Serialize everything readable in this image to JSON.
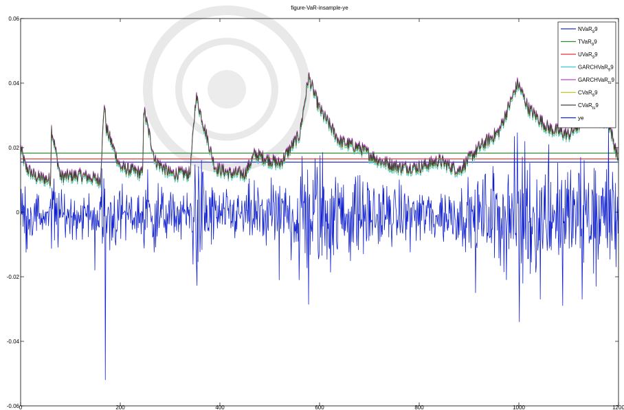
{
  "chart_data": {
    "type": "line",
    "title": "figure-VaR-insample-ye",
    "xlim": [
      0,
      1200
    ],
    "ylim": [
      -0.06,
      0.06
    ],
    "xticks": [
      0,
      200,
      400,
      600,
      800,
      1000,
      1200
    ],
    "yticks": [
      -0.06,
      -0.04,
      -0.02,
      0,
      0.02,
      0.04,
      0.06
    ],
    "xtick_labels": [
      "0",
      "200",
      "400",
      "600",
      "800",
      "1000",
      "1200"
    ],
    "ytick_labels": [
      "-0.06",
      "-0.04",
      "-0.02",
      "0",
      "0.02",
      "0.04",
      "0.06"
    ],
    "grid": false,
    "legend_position": "top-right",
    "series": [
      {
        "name": "NVaR",
        "sub": "9",
        "tail": "9",
        "color": "#1f2fcf",
        "kind": "constant",
        "value": 0.0155
      },
      {
        "name": "TVaR",
        "sub": "9",
        "tail": "9",
        "color": "#2e8b2e",
        "kind": "constant",
        "value": 0.0183
      },
      {
        "name": "UVaR",
        "sub": "9",
        "tail": "9",
        "color": "#e03030",
        "kind": "constant",
        "value": 0.0165
      },
      {
        "name": "GARCHVaR",
        "sub": "9",
        "tail": "9",
        "color": "#30c8d8",
        "kind": "garch"
      },
      {
        "name": "GARCHVaR",
        "sub": "ts",
        "tail": "9",
        "color": "#c040c8",
        "kind": "garch"
      },
      {
        "name": "CVaR",
        "sub": "9",
        "tail": "9",
        "color": "#c8c020",
        "kind": "garch"
      },
      {
        "name": "CVaR",
        "sub": "ts",
        "tail": "9",
        "color": "#404040",
        "kind": "garch"
      },
      {
        "name": "ye",
        "sub": "",
        "tail": "",
        "color": "#1020d0",
        "kind": "returns"
      }
    ],
    "garch_profile": {
      "x": [
        0,
        10,
        30,
        60,
        62,
        80,
        120,
        160,
        168,
        172,
        200,
        245,
        247,
        270,
        300,
        340,
        352,
        390,
        420,
        450,
        470,
        520,
        560,
        578,
        600,
        640,
        680,
        720,
        760,
        800,
        840,
        880,
        920,
        960,
        998,
        1020,
        1060,
        1100,
        1140,
        1180,
        1200
      ],
      "y": [
        0.02,
        0.014,
        0.011,
        0.01,
        0.026,
        0.011,
        0.0115,
        0.01,
        0.034,
        0.026,
        0.014,
        0.012,
        0.032,
        0.016,
        0.012,
        0.012,
        0.036,
        0.014,
        0.012,
        0.012,
        0.018,
        0.015,
        0.024,
        0.042,
        0.032,
        0.022,
        0.02,
        0.016,
        0.014,
        0.014,
        0.016,
        0.013,
        0.02,
        0.025,
        0.04,
        0.032,
        0.026,
        0.024,
        0.03,
        0.028,
        0.016
      ]
    },
    "returns_spikes": [
      {
        "x": 170,
        "y": -0.052
      },
      {
        "x": 149,
        "y": -0.018
      },
      {
        "x": 559,
        "y": -0.021
      },
      {
        "x": 519,
        "y": -0.021
      },
      {
        "x": 913,
        "y": -0.025
      },
      {
        "x": 1001,
        "y": -0.034
      },
      {
        "x": 1043,
        "y": -0.027
      },
      {
        "x": 1088,
        "y": -0.029
      },
      {
        "x": 1127,
        "y": -0.027
      },
      {
        "x": 1155,
        "y": -0.023
      },
      {
        "x": 1195,
        "y": -0.017
      },
      {
        "x": 1012,
        "y": 0.022
      },
      {
        "x": 1060,
        "y": 0.021
      },
      {
        "x": 1180,
        "y": 0.026
      }
    ]
  }
}
